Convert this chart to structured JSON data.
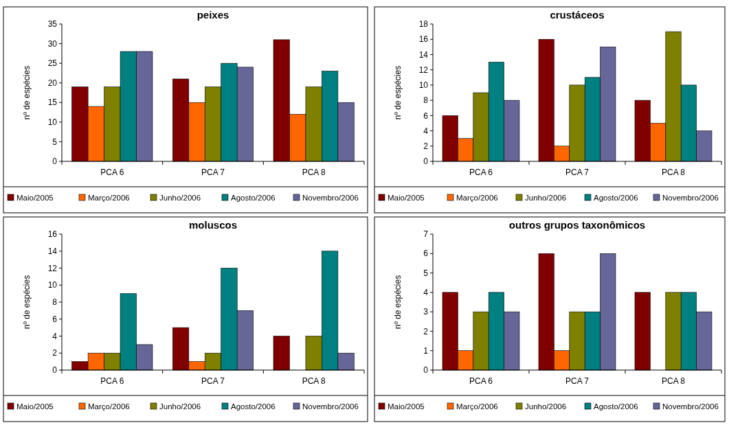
{
  "chart_data": [
    {
      "type": "bar",
      "title": "peixes",
      "ylabel": "nº de espécies",
      "categories": [
        "PCA 6",
        "PCA 7",
        "PCA 8"
      ],
      "ylim": [
        0,
        35
      ],
      "yticks": [
        0,
        5,
        10,
        15,
        20,
        25,
        30,
        35
      ],
      "grid": false,
      "legend": "bottom",
      "series": [
        {
          "name": "Maio/2005",
          "color": "#800000",
          "values": [
            19,
            21,
            31
          ]
        },
        {
          "name": "Março/2006",
          "color": "#ff6600",
          "values": [
            14,
            15,
            12
          ]
        },
        {
          "name": "Junho/2006",
          "color": "#808000",
          "values": [
            19,
            19,
            19
          ]
        },
        {
          "name": "Agosto/2006",
          "color": "#008080",
          "values": [
            28,
            25,
            23
          ]
        },
        {
          "name": "Novembro/2006",
          "color": "#666699",
          "values": [
            28,
            24,
            15
          ]
        }
      ]
    },
    {
      "type": "bar",
      "title": "crustáceos",
      "ylabel": "nº de espécies",
      "categories": [
        "PCA 6",
        "PCA 7",
        "PCA 8"
      ],
      "ylim": [
        0,
        18
      ],
      "yticks": [
        0,
        2,
        4,
        6,
        8,
        10,
        12,
        14,
        16,
        18
      ],
      "grid": false,
      "legend": "bottom",
      "series": [
        {
          "name": "Maio/2005",
          "color": "#800000",
          "values": [
            6,
            16,
            8
          ]
        },
        {
          "name": "Março/2006",
          "color": "#ff6600",
          "values": [
            3,
            2,
            5
          ]
        },
        {
          "name": "Junho/2006",
          "color": "#808000",
          "values": [
            9,
            10,
            17
          ]
        },
        {
          "name": "Agosto/2006",
          "color": "#008080",
          "values": [
            13,
            11,
            10
          ]
        },
        {
          "name": "Novembro/2006",
          "color": "#666699",
          "values": [
            8,
            15,
            4
          ]
        }
      ]
    },
    {
      "type": "bar",
      "title": "moluscos",
      "ylabel": "nº de espécies",
      "categories": [
        "PCA 6",
        "PCA 7",
        "PCA 8"
      ],
      "ylim": [
        0,
        16
      ],
      "yticks": [
        0,
        2,
        4,
        6,
        8,
        10,
        12,
        14,
        16
      ],
      "grid": false,
      "legend": "bottom",
      "series": [
        {
          "name": "Maio/2005",
          "color": "#800000",
          "values": [
            1,
            5,
            4
          ]
        },
        {
          "name": "Março/2006",
          "color": "#ff6600",
          "values": [
            2,
            1,
            0
          ]
        },
        {
          "name": "Junho/2006",
          "color": "#808000",
          "values": [
            2,
            2,
            4
          ]
        },
        {
          "name": "Agosto/2006",
          "color": "#008080",
          "values": [
            9,
            12,
            14
          ]
        },
        {
          "name": "Novembro/2006",
          "color": "#666699",
          "values": [
            3,
            7,
            2
          ]
        }
      ]
    },
    {
      "type": "bar",
      "title": "outros grupos taxonômicos",
      "ylabel": "nº de espécies",
      "categories": [
        "PCA 6",
        "PCA 7",
        "PCA 8"
      ],
      "ylim": [
        0,
        7
      ],
      "yticks": [
        0,
        1,
        2,
        3,
        4,
        5,
        6,
        7
      ],
      "grid": false,
      "legend": "bottom",
      "series": [
        {
          "name": "Maio/2005",
          "color": "#800000",
          "values": [
            4,
            6,
            4
          ]
        },
        {
          "name": "Março/2006",
          "color": "#ff6600",
          "values": [
            1,
            1,
            0
          ]
        },
        {
          "name": "Junho/2006",
          "color": "#808000",
          "values": [
            3,
            3,
            4
          ]
        },
        {
          "name": "Agosto/2006",
          "color": "#008080",
          "values": [
            4,
            3,
            4
          ]
        },
        {
          "name": "Novembro/2006",
          "color": "#666699",
          "values": [
            3,
            6,
            3
          ]
        }
      ]
    }
  ]
}
